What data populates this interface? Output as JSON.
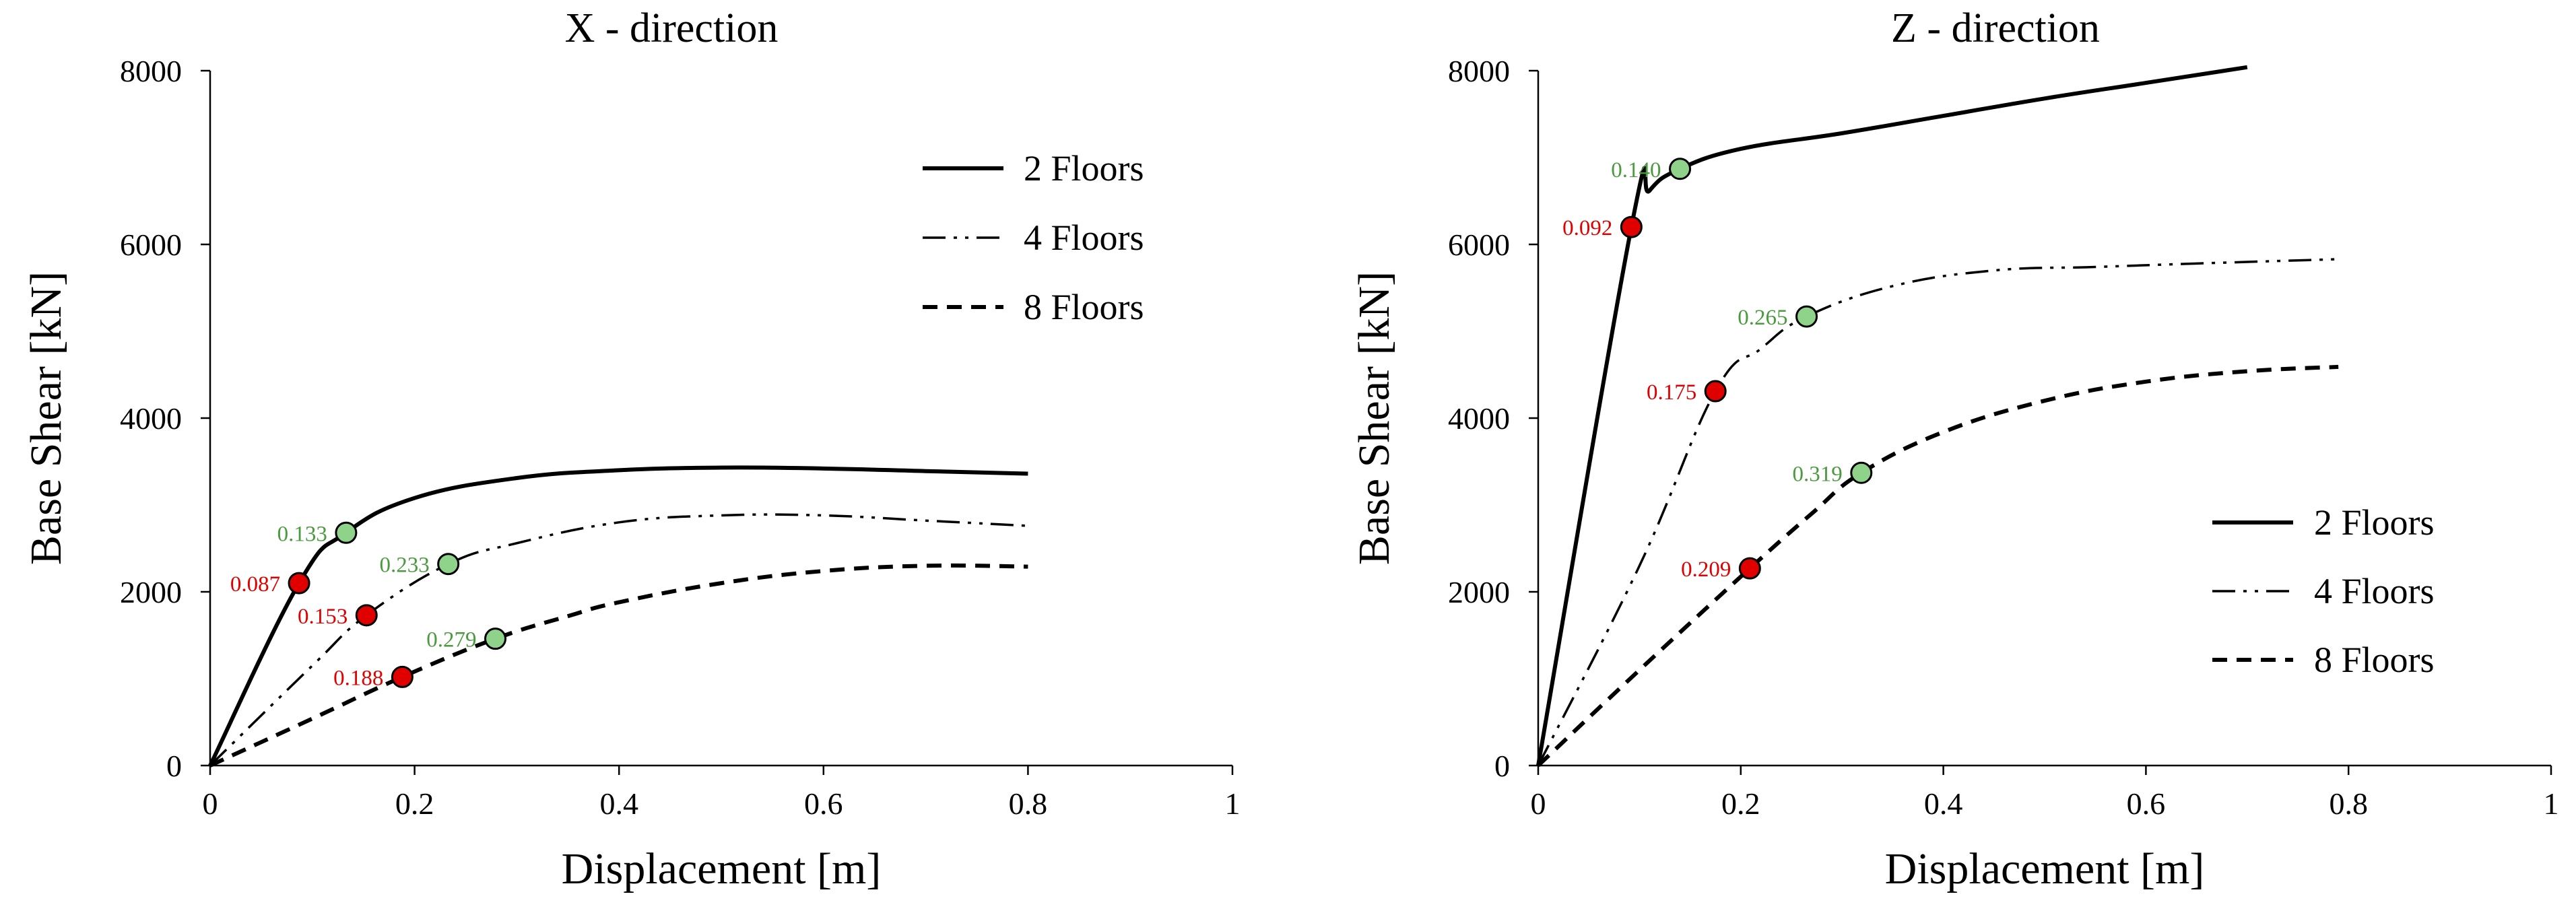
{
  "chart_data": [
    {
      "type": "line",
      "title": "X - direction",
      "xlabel": "Displacement  [m]",
      "ylabel": "Base Shear [kN]",
      "xlim": [
        0,
        1
      ],
      "ylim": [
        0,
        8000
      ],
      "xticks": [
        0,
        0.2,
        0.4,
        0.6,
        0.8,
        1
      ],
      "xtick_labels": [
        "0",
        "0.2",
        "0.4",
        "0.6",
        "0.8",
        "1"
      ],
      "yticks": [
        0,
        2000,
        4000,
        6000,
        8000
      ],
      "ytick_labels": [
        "0",
        "2000",
        "4000",
        "6000",
        "8000"
      ],
      "grid": false,
      "legend_position": "top-right",
      "series": [
        {
          "name": "2 Floors",
          "style": "solid",
          "x": [
            0,
            0.087,
            0.133,
            0.2,
            0.3,
            0.4,
            0.5,
            0.6,
            0.7,
            0.8
          ],
          "y": [
            0,
            2100,
            2680,
            3080,
            3310,
            3400,
            3430,
            3420,
            3390,
            3360
          ],
          "markers": [
            {
              "x": 0.087,
              "y": 2100,
              "label": "0.087",
              "color": "#e00000"
            },
            {
              "x": 0.133,
              "y": 2680,
              "label": "0.133",
              "color": "#8fd28a"
            }
          ]
        },
        {
          "name": "4 Floors",
          "style": "dash-dot-dot",
          "x": [
            0,
            0.1,
            0.153,
            0.233,
            0.3,
            0.4,
            0.5,
            0.6,
            0.7,
            0.8
          ],
          "y": [
            0,
            1150,
            1730,
            2320,
            2560,
            2800,
            2880,
            2880,
            2820,
            2760
          ],
          "markers": [
            {
              "x": 0.153,
              "y": 1730,
              "label": "0.153",
              "color": "#e00000"
            },
            {
              "x": 0.233,
              "y": 2320,
              "label": "0.233",
              "color": "#8fd28a"
            }
          ]
        },
        {
          "name": "8 Floors",
          "style": "dashed",
          "x": [
            0,
            0.1,
            0.188,
            0.279,
            0.35,
            0.4,
            0.5,
            0.6,
            0.7,
            0.8
          ],
          "y": [
            0,
            540,
            1020,
            1460,
            1720,
            1880,
            2100,
            2240,
            2300,
            2290
          ],
          "markers": [
            {
              "x": 0.188,
              "y": 1020,
              "label": "0.188",
              "color": "#e00000"
            },
            {
              "x": 0.279,
              "y": 1460,
              "label": "0.279",
              "color": "#8fd28a"
            }
          ]
        }
      ]
    },
    {
      "type": "line",
      "title": "Z - direction",
      "xlabel": "Displacement  [m]",
      "ylabel": "Base Shear [kN]",
      "xlim": [
        0,
        1
      ],
      "ylim": [
        0,
        8000
      ],
      "xticks": [
        0,
        0.2,
        0.4,
        0.6,
        0.8,
        1
      ],
      "xtick_labels": [
        "0",
        "0.2",
        "0.4",
        "0.6",
        "0.8",
        "1"
      ],
      "yticks": [
        0,
        2000,
        4000,
        6000,
        8000
      ],
      "ytick_labels": [
        "0",
        "2000",
        "4000",
        "6000",
        "8000"
      ],
      "grid": false,
      "legend_position": "bottom-right",
      "series": [
        {
          "name": "2 Floors",
          "style": "solid",
          "x": [
            0,
            0.092,
            0.11,
            0.14,
            0.2,
            0.3,
            0.4,
            0.5,
            0.6,
            0.7
          ],
          "y": [
            0,
            6200,
            6620,
            6870,
            7100,
            7280,
            7480,
            7680,
            7860,
            8040
          ],
          "markers": [
            {
              "x": 0.092,
              "y": 6200,
              "label": "0.092",
              "color": "#e00000"
            },
            {
              "x": 0.14,
              "y": 6870,
              "label": "0.140",
              "color": "#8fd28a"
            }
          ]
        },
        {
          "name": "4 Floors",
          "style": "dash-dot-dot",
          "x": [
            0,
            0.1,
            0.175,
            0.22,
            0.265,
            0.35,
            0.45,
            0.55,
            0.65,
            0.79
          ],
          "y": [
            0,
            2300,
            4310,
            4800,
            5170,
            5520,
            5700,
            5740,
            5780,
            5830
          ],
          "markers": [
            {
              "x": 0.175,
              "y": 4310,
              "label": "0.175",
              "color": "#e00000"
            },
            {
              "x": 0.265,
              "y": 5170,
              "label": "0.265",
              "color": "#8fd28a"
            }
          ]
        },
        {
          "name": "8 Floors",
          "style": "dashed",
          "x": [
            0,
            0.1,
            0.209,
            0.27,
            0.319,
            0.4,
            0.5,
            0.6,
            0.7,
            0.79
          ],
          "y": [
            0,
            1100,
            2270,
            2900,
            3370,
            3840,
            4200,
            4420,
            4540,
            4590
          ],
          "markers": [
            {
              "x": 0.209,
              "y": 2270,
              "label": "0.209",
              "color": "#e00000"
            },
            {
              "x": 0.319,
              "y": 3370,
              "label": "0.319",
              "color": "#8fd28a"
            }
          ]
        }
      ]
    }
  ]
}
